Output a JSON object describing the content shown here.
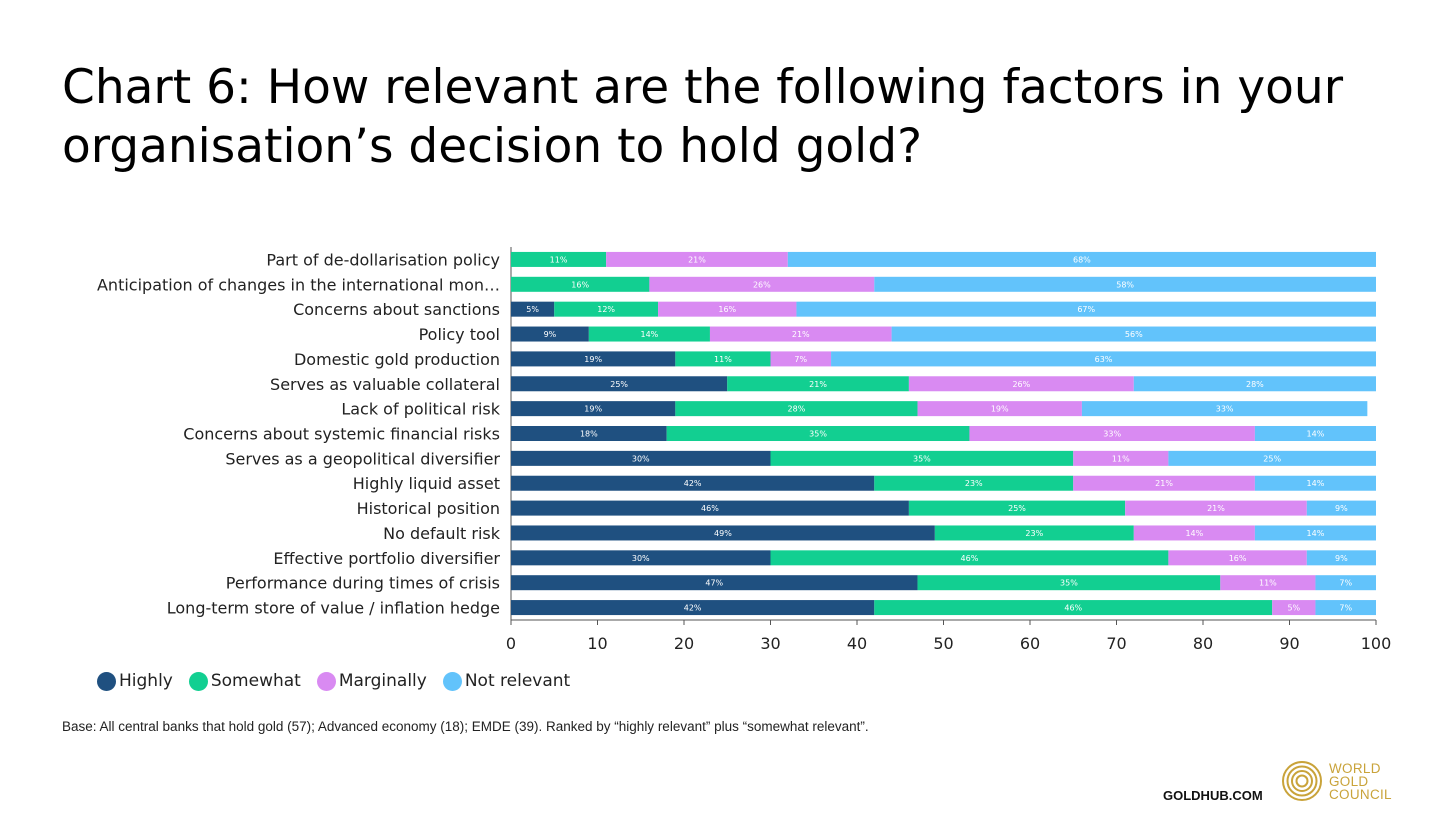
{
  "title": {
    "line1": "Chart 6: How relevant are the following factors in your",
    "line2": "organisation’s decision to hold gold?"
  },
  "chart_data": {
    "type": "bar",
    "orientation": "horizontal",
    "stacked": true,
    "categories": [
      "Part of de-dollarisation policy",
      "Anticipation of changes in the international mon…",
      "Concerns about sanctions",
      "Policy tool",
      "Domestic gold production",
      "Serves as valuable collateral",
      "Lack of political risk",
      "Concerns about systemic financial risks",
      "Serves as a geopolitical diversifier",
      "Highly liquid asset",
      "Historical position",
      "No default risk",
      "Effective portfolio diversifier",
      "Performance during times of crisis",
      "Long-term store of value / inflation hedge"
    ],
    "series": [
      {
        "name": "Highly",
        "color": "#1f5080",
        "values": [
          0,
          0,
          5,
          9,
          19,
          25,
          19,
          18,
          30,
          42,
          46,
          49,
          30,
          47,
          42
        ]
      },
      {
        "name": "Somewhat",
        "color": "#12cf91",
        "values": [
          11,
          16,
          12,
          14,
          11,
          21,
          28,
          35,
          35,
          23,
          25,
          23,
          46,
          35,
          46
        ]
      },
      {
        "name": "Marginally",
        "color": "#d98af2",
        "values": [
          21,
          26,
          16,
          21,
          7,
          26,
          19,
          33,
          11,
          21,
          21,
          14,
          16,
          11,
          5
        ]
      },
      {
        "name": "Not relevant",
        "color": "#62c3fb",
        "values": [
          68,
          58,
          67,
          56,
          63,
          28,
          33,
          14,
          25,
          14,
          9,
          14,
          9,
          7,
          7
        ]
      }
    ],
    "xlim": [
      0,
      100
    ],
    "xticks": [
      0,
      10,
      20,
      30,
      40,
      50,
      60,
      70,
      80,
      90,
      100
    ],
    "value_suffix": "%",
    "legend_position": "bottom-left",
    "grid": false
  },
  "legend": {
    "items": [
      {
        "label": "Highly",
        "color": "#1f5080"
      },
      {
        "label": "Somewhat",
        "color": "#12cf91"
      },
      {
        "label": "Marginally",
        "color": "#d98af2"
      },
      {
        "label": "Not relevant",
        "color": "#62c3fb"
      }
    ]
  },
  "footnote": "Base: All central banks that hold gold (57); Advanced economy (18); EMDE (39). Ranked by “highly relevant” plus “somewhat relevant”.",
  "footer": {
    "site": "GOLDHUB.COM",
    "logo_lines": [
      "WORLD",
      "GOLD",
      "COUNCIL"
    ],
    "logo_color": "#c9a33a",
    "logo_icon": "concentric-rings-icon"
  }
}
